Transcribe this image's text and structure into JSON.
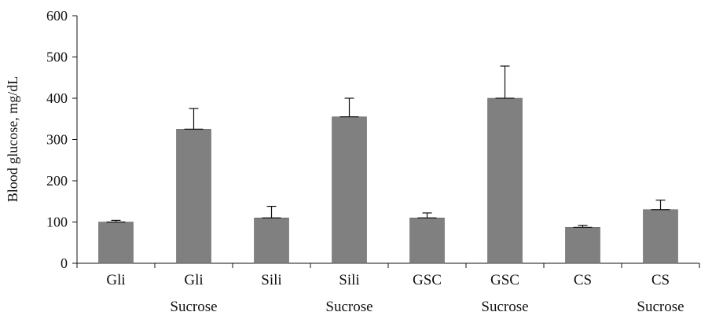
{
  "chart_data": {
    "type": "bar",
    "title": "",
    "xlabel": "",
    "ylabel": "Blood glucose, mg/dL",
    "ylim": [
      0,
      600
    ],
    "yticks": [
      0,
      100,
      200,
      300,
      400,
      500,
      600
    ],
    "grid": false,
    "legend": "none",
    "bar_color": "#808080",
    "categories": [
      [
        "Gli"
      ],
      [
        "Gli",
        "Sucrose"
      ],
      [
        "Sili"
      ],
      [
        "Sili",
        "Sucrose"
      ],
      [
        "GSC"
      ],
      [
        "GSC",
        "Sucrose"
      ],
      [
        "CS"
      ],
      [
        "CS",
        "Sucrose"
      ]
    ],
    "values": [
      100,
      325,
      110,
      355,
      110,
      400,
      87,
      130
    ],
    "error_plus": [
      4,
      50,
      28,
      45,
      12,
      78,
      5,
      23
    ]
  }
}
